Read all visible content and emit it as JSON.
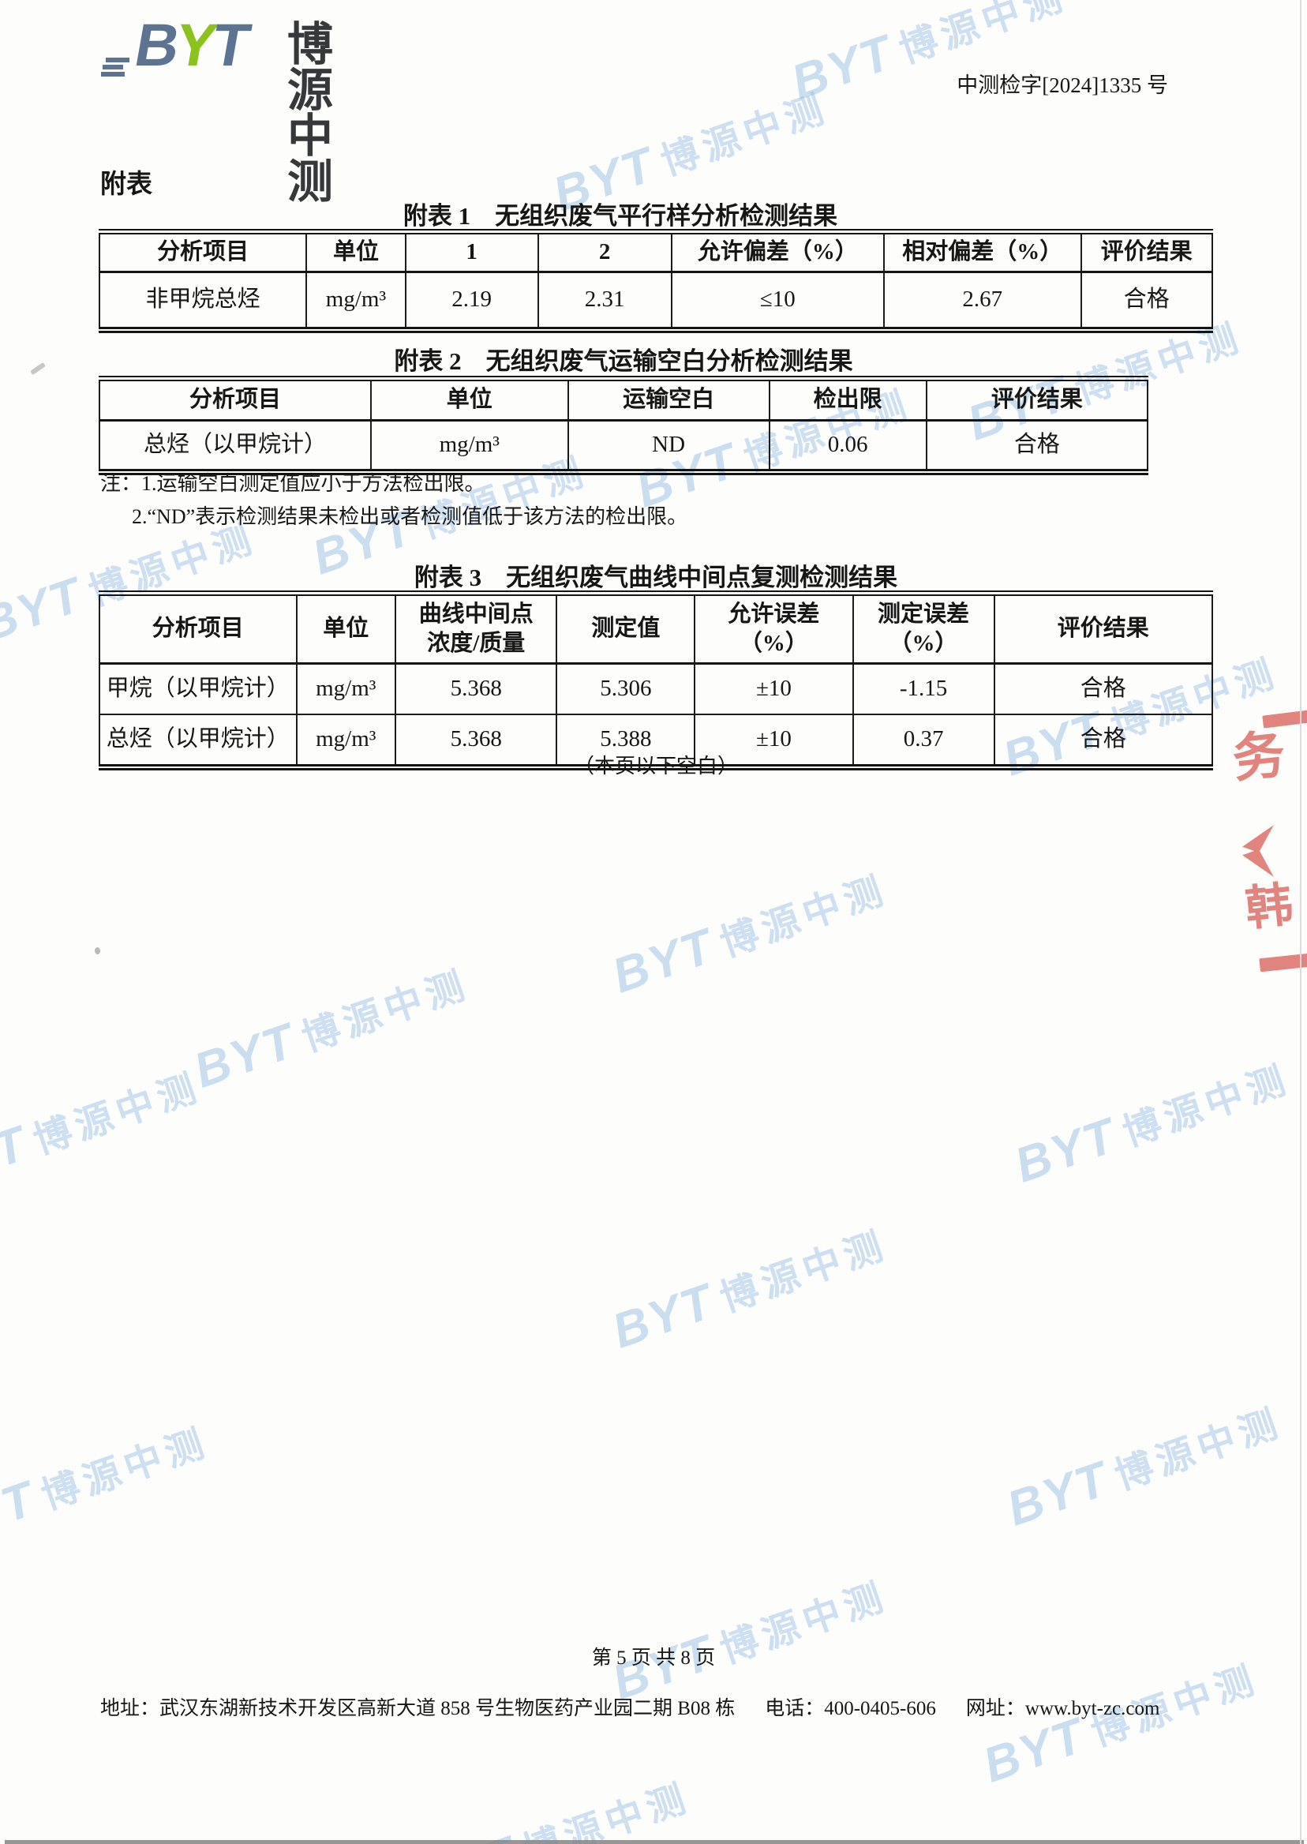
{
  "header": {
    "logo_b": "B",
    "logo_y": "Y",
    "logo_t": "T",
    "logo_cn": "博源中测",
    "ref_no": "中测检字[2024]1335 号"
  },
  "page": {
    "appendix_heading": "附表",
    "blank_note": "（本页以下空白）",
    "page_footer": "第 5 页 共 8 页"
  },
  "footer": {
    "address_label": "地址：",
    "address": "武汉东湖新技术开发区高新大道 858 号生物医药产业园二期 B08 栋",
    "phone_label": "电话：",
    "phone": "400-0405-606",
    "web_label": "网址：",
    "website": "www.byt-zc.com"
  },
  "watermark": {
    "text_en": "BYT",
    "text_cn": "博源中测",
    "color": "#85b2de"
  },
  "stamp": {
    "color": "#dc6f68",
    "chars": [
      "务",
      "韩"
    ]
  },
  "tables": [
    {
      "title": "附表 1　无组织废气平行样分析检测结果",
      "headers": [
        "分析项目",
        "单位",
        "1",
        "2",
        "允许偏差（%）",
        "相对偏差（%）",
        "评价结果"
      ],
      "rows": [
        [
          "非甲烷总烃",
          "mg/m³",
          "2.19",
          "2.31",
          "≤10",
          "2.67",
          "合格"
        ]
      ]
    },
    {
      "title": "附表 2　无组织废气运输空白分析检测结果",
      "headers": [
        "分析项目",
        "单位",
        "运输空白",
        "检出限",
        "评价结果"
      ],
      "rows": [
        [
          "总烃（以甲烷计）",
          "mg/m³",
          "ND",
          "0.06",
          "合格"
        ]
      ],
      "notes": [
        "注：1.运输空白测定值应小于方法检出限。",
        "2.“ND”表示检测结果未检出或者检测值低于该方法的检出限。"
      ]
    },
    {
      "title": "附表 3　无组织废气曲线中间点复测检测结果",
      "headers": [
        "分析项目",
        "单位",
        "曲线中间点\n浓度/质量",
        "测定值",
        "允许误差\n（%）",
        "测定误差\n（%）",
        "评价结果"
      ],
      "rows": [
        [
          "甲烷（以甲烷计）",
          "mg/m³",
          "5.368",
          "5.306",
          "±10",
          "-1.15",
          "合格"
        ],
        [
          "总烃（以甲烷计）",
          "mg/m³",
          "5.368",
          "5.388",
          "±10",
          "0.37",
          "合格"
        ]
      ]
    }
  ]
}
